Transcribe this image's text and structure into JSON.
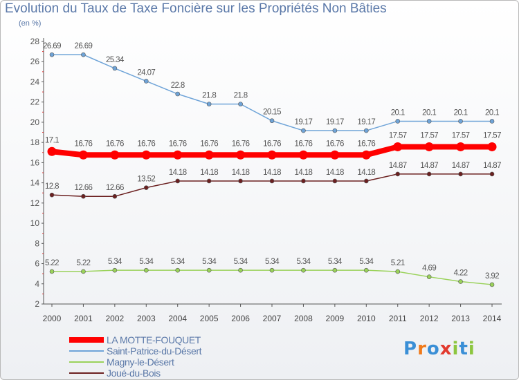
{
  "header": {
    "title": "Evolution du Taux de Taxe Foncière sur les Propriétés Non Bâties",
    "subtitle": "(en %)"
  },
  "logo": {
    "text": "Proxiti",
    "colors": [
      "#3a8fd6",
      "#f07a1a",
      "#3a8fd6",
      "#e23a2e",
      "#8cc63f",
      "#3a8fd6",
      "#8cc63f"
    ]
  },
  "chart_data": {
    "type": "line",
    "x": [
      "2000",
      "2001",
      "2002",
      "2003",
      "2004",
      "2005",
      "2006",
      "2007",
      "2008",
      "2009",
      "2010",
      "2011",
      "2012",
      "2013",
      "2014"
    ],
    "ylim": [
      2,
      28
    ],
    "yticks": [
      2,
      4,
      6,
      8,
      10,
      12,
      14,
      16,
      18,
      20,
      22,
      24,
      26,
      28
    ],
    "grid": false,
    "legend_position": "bottom-left",
    "series": [
      {
        "name": "LA MOTTE-FOUQUET",
        "color": "#ff0000",
        "emphasis": true,
        "values": [
          17.1,
          16.76,
          16.76,
          16.76,
          16.76,
          16.76,
          16.76,
          16.76,
          16.76,
          16.76,
          16.76,
          17.57,
          17.57,
          17.57,
          17.57
        ],
        "labels": [
          "17.1",
          "16.76",
          "16.76",
          "16.76",
          "16.76",
          "16.76",
          "16.76",
          "16.76",
          "16.76",
          "16.76",
          "16.76",
          "17.57",
          "17.57",
          "17.57",
          "17.57"
        ]
      },
      {
        "name": "Saint-Patrice-du-Désert",
        "color": "#6fa4d8",
        "emphasis": false,
        "values": [
          26.69,
          26.69,
          25.34,
          24.07,
          22.8,
          21.8,
          21.8,
          20.15,
          19.17,
          19.17,
          19.17,
          20.1,
          20.1,
          20.1,
          20.1
        ],
        "labels": [
          "26.69",
          "26.69",
          "25.34",
          "24.07",
          "22.8",
          "21.8",
          "21.8",
          "20.15",
          "19.17",
          "19.17",
          "19.17",
          "20.1",
          "20.1",
          "20.1",
          "20.1"
        ]
      },
      {
        "name": "Magny-le-Désert",
        "color": "#9ad25a",
        "emphasis": false,
        "values": [
          5.22,
          5.22,
          5.34,
          5.34,
          5.34,
          5.34,
          5.34,
          5.34,
          5.34,
          5.34,
          5.34,
          5.21,
          4.69,
          4.22,
          3.92
        ],
        "labels": [
          "5.22",
          "5.22",
          "5.34",
          "5.34",
          "5.34",
          "5.34",
          "5.34",
          "5.34",
          "5.34",
          "5.34",
          "5.34",
          "5.21",
          "4.69",
          "4.22",
          "3.92"
        ]
      },
      {
        "name": "Joué-du-Bois",
        "color": "#6b2020",
        "emphasis": false,
        "values": [
          12.8,
          12.66,
          12.66,
          13.52,
          14.18,
          14.18,
          14.18,
          14.18,
          14.18,
          14.18,
          14.18,
          14.87,
          14.87,
          14.87,
          14.87
        ],
        "labels": [
          "12.8",
          "12.66",
          "12.66",
          "13.52",
          "14.18",
          "14.18",
          "14.18",
          "14.18",
          "14.18",
          "14.18",
          "14.18",
          "14.87",
          "14.87",
          "14.87",
          "14.87"
        ]
      }
    ]
  }
}
